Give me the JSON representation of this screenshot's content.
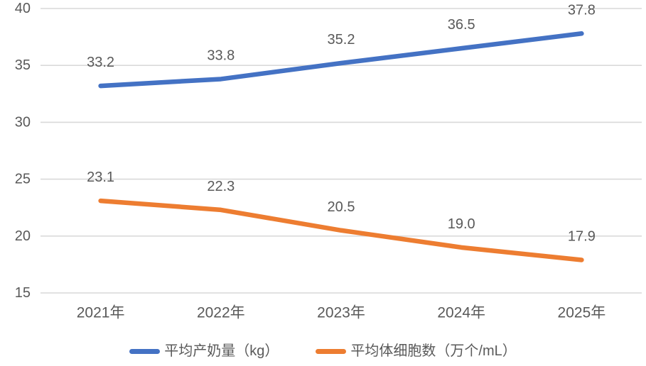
{
  "chart_data": {
    "type": "line",
    "title": "",
    "categories": [
      "2021年",
      "2022年",
      "2023年",
      "2024年",
      "2025年"
    ],
    "series": [
      {
        "name": "平均产奶量（kg）",
        "values": [
          33.2,
          33.8,
          35.2,
          36.5,
          37.8
        ],
        "color": "#4472C4"
      },
      {
        "name": "平均体细胞数（万个/mL）",
        "values": [
          23.1,
          22.3,
          20.5,
          19.0,
          17.9
        ],
        "color": "#ED7D31"
      }
    ],
    "ylim": [
      15,
      40
    ],
    "y_ticks": [
      15,
      20,
      25,
      30,
      35,
      40
    ],
    "grid": true,
    "data_labels": true,
    "legend_position": "bottom"
  },
  "colors": {
    "gridline": "#D9D9D9",
    "label_text": "#595959",
    "background": "#FFFFFF"
  }
}
